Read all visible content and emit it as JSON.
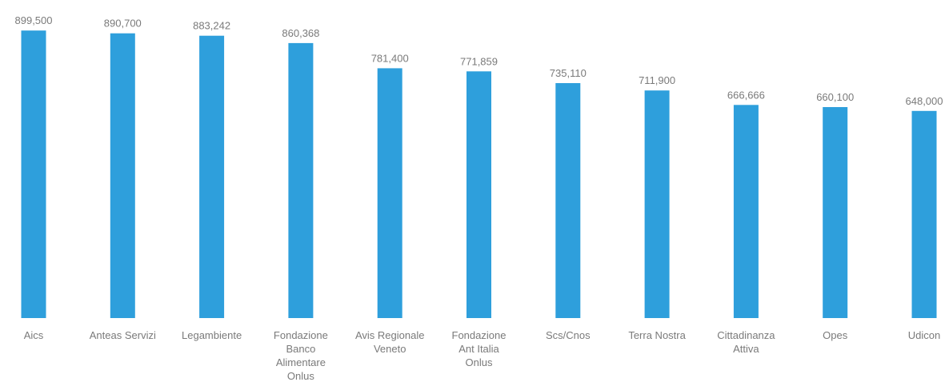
{
  "chart_data": {
    "type": "bar",
    "categories": [
      "Aics",
      "Anteas Servizi",
      "Legambiente",
      "Fondazione Banco Alimentare Onlus",
      "Avis Regionale Veneto",
      "Fondazione Ant Italia Onlus",
      "Scs/Cnos",
      "Terra Nostra",
      "Cittadinanza Attiva",
      "Opes",
      "Udicon"
    ],
    "category_lines": [
      [
        "Aics"
      ],
      [
        "Anteas Servizi"
      ],
      [
        "Legambiente"
      ],
      [
        "Fondazione",
        "Banco",
        "Alimentare",
        "Onlus"
      ],
      [
        "Avis Regionale",
        "Veneto"
      ],
      [
        "Fondazione",
        "Ant Italia",
        "Onlus"
      ],
      [
        "Scs/Cnos"
      ],
      [
        "Terra Nostra"
      ],
      [
        "Cittadinanza",
        "Attiva"
      ],
      [
        "Opes"
      ],
      [
        "Udicon"
      ]
    ],
    "values": [
      899500,
      890700,
      883242,
      860368,
      781400,
      771859,
      735110,
      711900,
      666666,
      660100,
      648000
    ],
    "value_labels": [
      "899,500",
      "890,700",
      "883,242",
      "860,368",
      "781,400",
      "771,859",
      "735,110",
      "711,900",
      "666,666",
      "660,100",
      "648,000"
    ],
    "title": "",
    "xlabel": "",
    "ylabel": "",
    "ylim": [
      0,
      900000
    ],
    "grid": false,
    "legend": "none",
    "bar_color": "#2e9fdc",
    "label_color": "#7a7a7a"
  }
}
